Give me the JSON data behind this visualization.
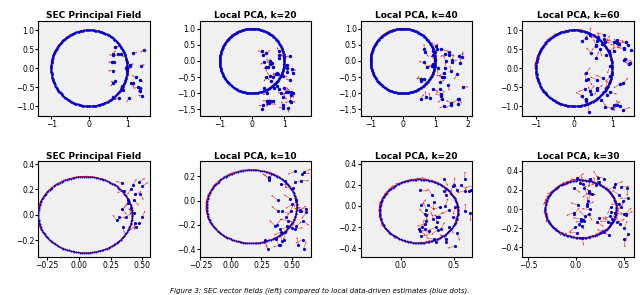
{
  "titles_row1": [
    "SEC Principal Field",
    "Local PCA, k=20",
    "Local PCA, k=40",
    "Local PCA, k=60"
  ],
  "titles_row2": [
    "SEC Principal Field",
    "Local PCA, k=10",
    "Local PCA, k=20",
    "Local PCA, k=30"
  ],
  "circle_color": "#0000CC",
  "arrow_color": "#DD0000",
  "bg_color": "#F0F0F0",
  "title_fontsize": 6.5,
  "tick_fontsize": 5.5,
  "caption": "Figure 3: SEC vector fields (left) compared to local data-driven estimates (blue dots)."
}
